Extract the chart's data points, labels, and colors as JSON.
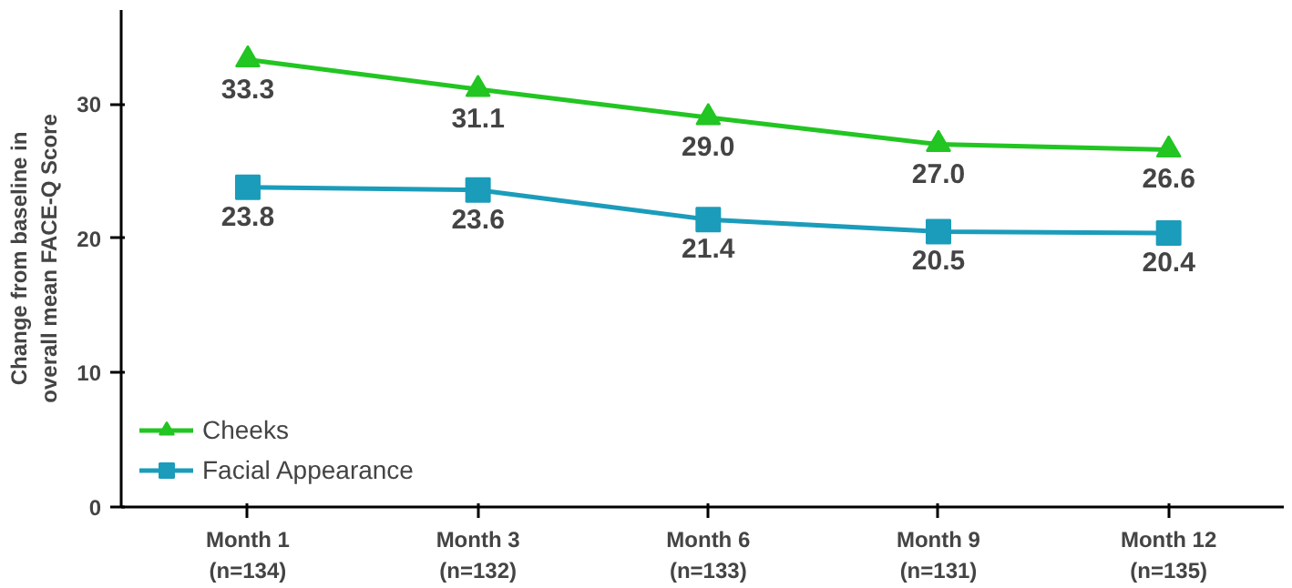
{
  "chart_data": {
    "type": "line",
    "ylabel": "Change from baseline in\noverall mean FACE-Q Score",
    "categories": [
      "Month 1\n(n=134)",
      "Month 3\n(n=132)",
      "Month 6\n(n=133)",
      "Month 9\n(n=131)",
      "Month 12\n(n=135)"
    ],
    "series": [
      {
        "name": "Cheeks",
        "color": "#22c522",
        "marker": "triangle",
        "values": [
          33.3,
          31.1,
          29.0,
          27.0,
          26.6
        ],
        "value_labels": [
          "33.3",
          "31.1",
          "29.0",
          "27.0",
          "26.6"
        ]
      },
      {
        "name": "Facial Appearance",
        "color": "#1b9cbb",
        "marker": "square",
        "values": [
          23.8,
          23.6,
          21.4,
          20.5,
          20.4
        ],
        "value_labels": [
          "23.8",
          "23.6",
          "21.4",
          "20.5",
          "20.4"
        ]
      }
    ],
    "ylim": [
      0,
      37
    ],
    "yticks": [
      0,
      10,
      20,
      30
    ],
    "grid": false,
    "legend": "bottom left",
    "line_style": "solid"
  }
}
